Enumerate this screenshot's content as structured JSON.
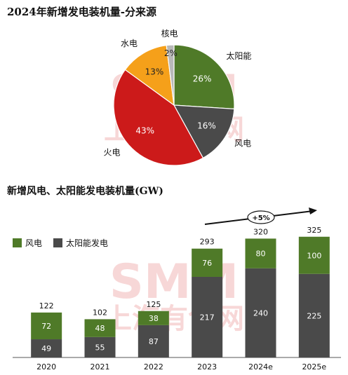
{
  "charts_titles": {
    "pie_title": "2024年新增发电装机量-分来源",
    "bar_title": "新增风电、太阳能发电装机量(GW)"
  },
  "watermark": {
    "latin": "SMM",
    "cn": "上海有色网"
  },
  "chart_data": [
    {
      "type": "pie",
      "title": "2024年新增发电装机量-分来源",
      "slices": [
        {
          "name": "太阳能",
          "value": 26,
          "label": "26%",
          "color": "#4f7a28"
        },
        {
          "name": "风电",
          "value": 16,
          "label": "16%",
          "color": "#4a4a4a"
        },
        {
          "name": "火电",
          "value": 43,
          "label": "43%",
          "color": "#cc1a1a"
        },
        {
          "name": "水电",
          "value": 13,
          "label": "13%",
          "color": "#f5a01a"
        },
        {
          "name": "核电",
          "value": 2,
          "label": "2%",
          "color": "#b8b8b8"
        }
      ]
    },
    {
      "type": "bar",
      "stacked": true,
      "title": "新增风电、太阳能发电装机量(GW)",
      "categories": [
        "2020",
        "2021",
        "2022",
        "2023",
        "2024e",
        "2025e"
      ],
      "series": [
        {
          "name": "太阳能发电",
          "values": [
            49,
            55,
            87,
            217,
            240,
            225
          ],
          "color": "#4a4a4a"
        },
        {
          "name": "风电",
          "values": [
            72,
            48,
            38,
            76,
            80,
            100
          ],
          "color": "#4f7a28"
        }
      ],
      "totals": [
        122,
        102,
        125,
        293,
        320,
        325
      ],
      "legend": [
        "风电",
        "太阳能发电"
      ],
      "legend_position": "top-left",
      "annotation": "+5%",
      "ylim": [
        0,
        340
      ]
    }
  ]
}
